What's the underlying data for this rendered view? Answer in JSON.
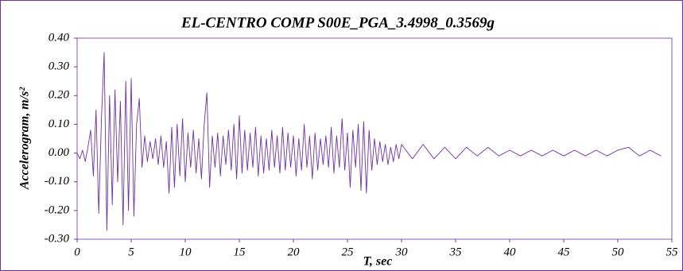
{
  "chart_data": {
    "type": "line",
    "title": "EL-CENTRO COMP S00E_PGA_3.4998_0.3569g",
    "x_label": "T, sec",
    "y_label": "Accelerogram, m/s²",
    "color": "#7030a0",
    "x": [
      0,
      0.25,
      0.5,
      0.75,
      1,
      1.25,
      1.5,
      1.75,
      2,
      2.25,
      2.5,
      2.75,
      3,
      3.25,
      3.5,
      3.75,
      4,
      4.25,
      4.5,
      4.75,
      5,
      5.25,
      5.5,
      5.75,
      6,
      6.25,
      6.5,
      6.75,
      7,
      7.25,
      7.5,
      7.75,
      8,
      8.25,
      8.5,
      8.75,
      9,
      9.25,
      9.5,
      9.75,
      10,
      10.25,
      10.5,
      10.75,
      11,
      11.25,
      11.5,
      11.75,
      12,
      12.25,
      12.5,
      12.75,
      13,
      13.25,
      13.5,
      13.75,
      14,
      14.25,
      14.5,
      14.75,
      15,
      15.25,
      15.5,
      15.75,
      16,
      16.25,
      16.5,
      16.75,
      17,
      17.25,
      17.5,
      17.75,
      18,
      18.25,
      18.5,
      18.75,
      19,
      19.25,
      19.5,
      19.75,
      20,
      20.25,
      20.5,
      20.75,
      21,
      21.25,
      21.5,
      21.75,
      22,
      22.25,
      22.5,
      22.75,
      23,
      23.25,
      23.5,
      23.75,
      24,
      24.25,
      24.5,
      24.75,
      25,
      25.25,
      25.5,
      25.75,
      26,
      26.25,
      26.5,
      26.75,
      27,
      27.25,
      27.5,
      27.75,
      28,
      28.25,
      28.5,
      28.75,
      29,
      29.25,
      29.5,
      29.75,
      30,
      31,
      32,
      33,
      34,
      35,
      36,
      37,
      38,
      39,
      40,
      41,
      42,
      43,
      44,
      45,
      46,
      47,
      48,
      49,
      50,
      51,
      52,
      53,
      54
    ],
    "values": [
      0.0,
      -0.02,
      0.01,
      -0.03,
      0.02,
      0.08,
      -0.08,
      0.15,
      -0.21,
      0.12,
      0.35,
      -0.27,
      0.2,
      -0.18,
      0.22,
      -0.1,
      0.18,
      -0.25,
      0.25,
      -0.2,
      0.26,
      -0.22,
      0.1,
      0.19,
      -0.05,
      0.06,
      -0.03,
      0.04,
      -0.02,
      0.05,
      -0.04,
      0.06,
      -0.05,
      0.04,
      -0.14,
      0.09,
      -0.12,
      0.1,
      -0.08,
      0.12,
      -0.1,
      0.07,
      -0.05,
      0.08,
      -0.07,
      0.05,
      -0.09,
      0.1,
      0.21,
      -0.12,
      0.06,
      -0.05,
      0.07,
      -0.08,
      0.06,
      -0.04,
      0.08,
      -0.06,
      0.1,
      -0.09,
      0.13,
      -0.07,
      0.08,
      -0.06,
      0.07,
      -0.05,
      0.09,
      -0.08,
      0.06,
      -0.07,
      0.05,
      -0.06,
      0.08,
      -0.05,
      0.06,
      -0.07,
      0.09,
      -0.06,
      0.07,
      -0.05,
      0.06,
      -0.08,
      0.05,
      -0.06,
      0.1,
      -0.05,
      0.06,
      -0.09,
      0.07,
      -0.06,
      0.05,
      -0.04,
      0.06,
      -0.05,
      0.09,
      -0.07,
      0.06,
      -0.05,
      0.12,
      -0.06,
      0.07,
      -0.12,
      0.08,
      -0.05,
      0.1,
      -0.13,
      0.11,
      -0.14,
      0.08,
      -0.06,
      0.05,
      -0.04,
      0.04,
      -0.03,
      0.03,
      -0.04,
      0.02,
      -0.03,
      0.03,
      -0.02,
      0.03,
      -0.02,
      0.03,
      -0.02,
      0.02,
      -0.02,
      0.02,
      -0.01,
      0.02,
      -0.01,
      0.01,
      -0.01,
      0.01,
      -0.01,
      0.01,
      -0.01,
      0.01,
      -0.01,
      0.01,
      -0.01,
      0.01,
      0.02,
      -0.01,
      0.01,
      -0.01
    ],
    "xlim": [
      0,
      55
    ],
    "xticks": [
      0,
      5,
      10,
      15,
      20,
      25,
      30,
      35,
      40,
      45,
      50,
      55
    ],
    "ylim": [
      -0.3,
      0.4
    ],
    "yticks": [
      {
        "value": -0.3,
        "label": "-0.30"
      },
      {
        "value": -0.2,
        "label": "-0.20"
      },
      {
        "value": -0.1,
        "label": "-0.10"
      },
      {
        "value": 0,
        "label": "0.00"
      },
      {
        "value": 0.1,
        "label": "0.10"
      },
      {
        "value": 0.2,
        "label": "0.20"
      },
      {
        "value": 0.3,
        "label": "0.30"
      },
      {
        "value": 0.4,
        "label": "0.40"
      }
    ],
    "grid": false
  }
}
